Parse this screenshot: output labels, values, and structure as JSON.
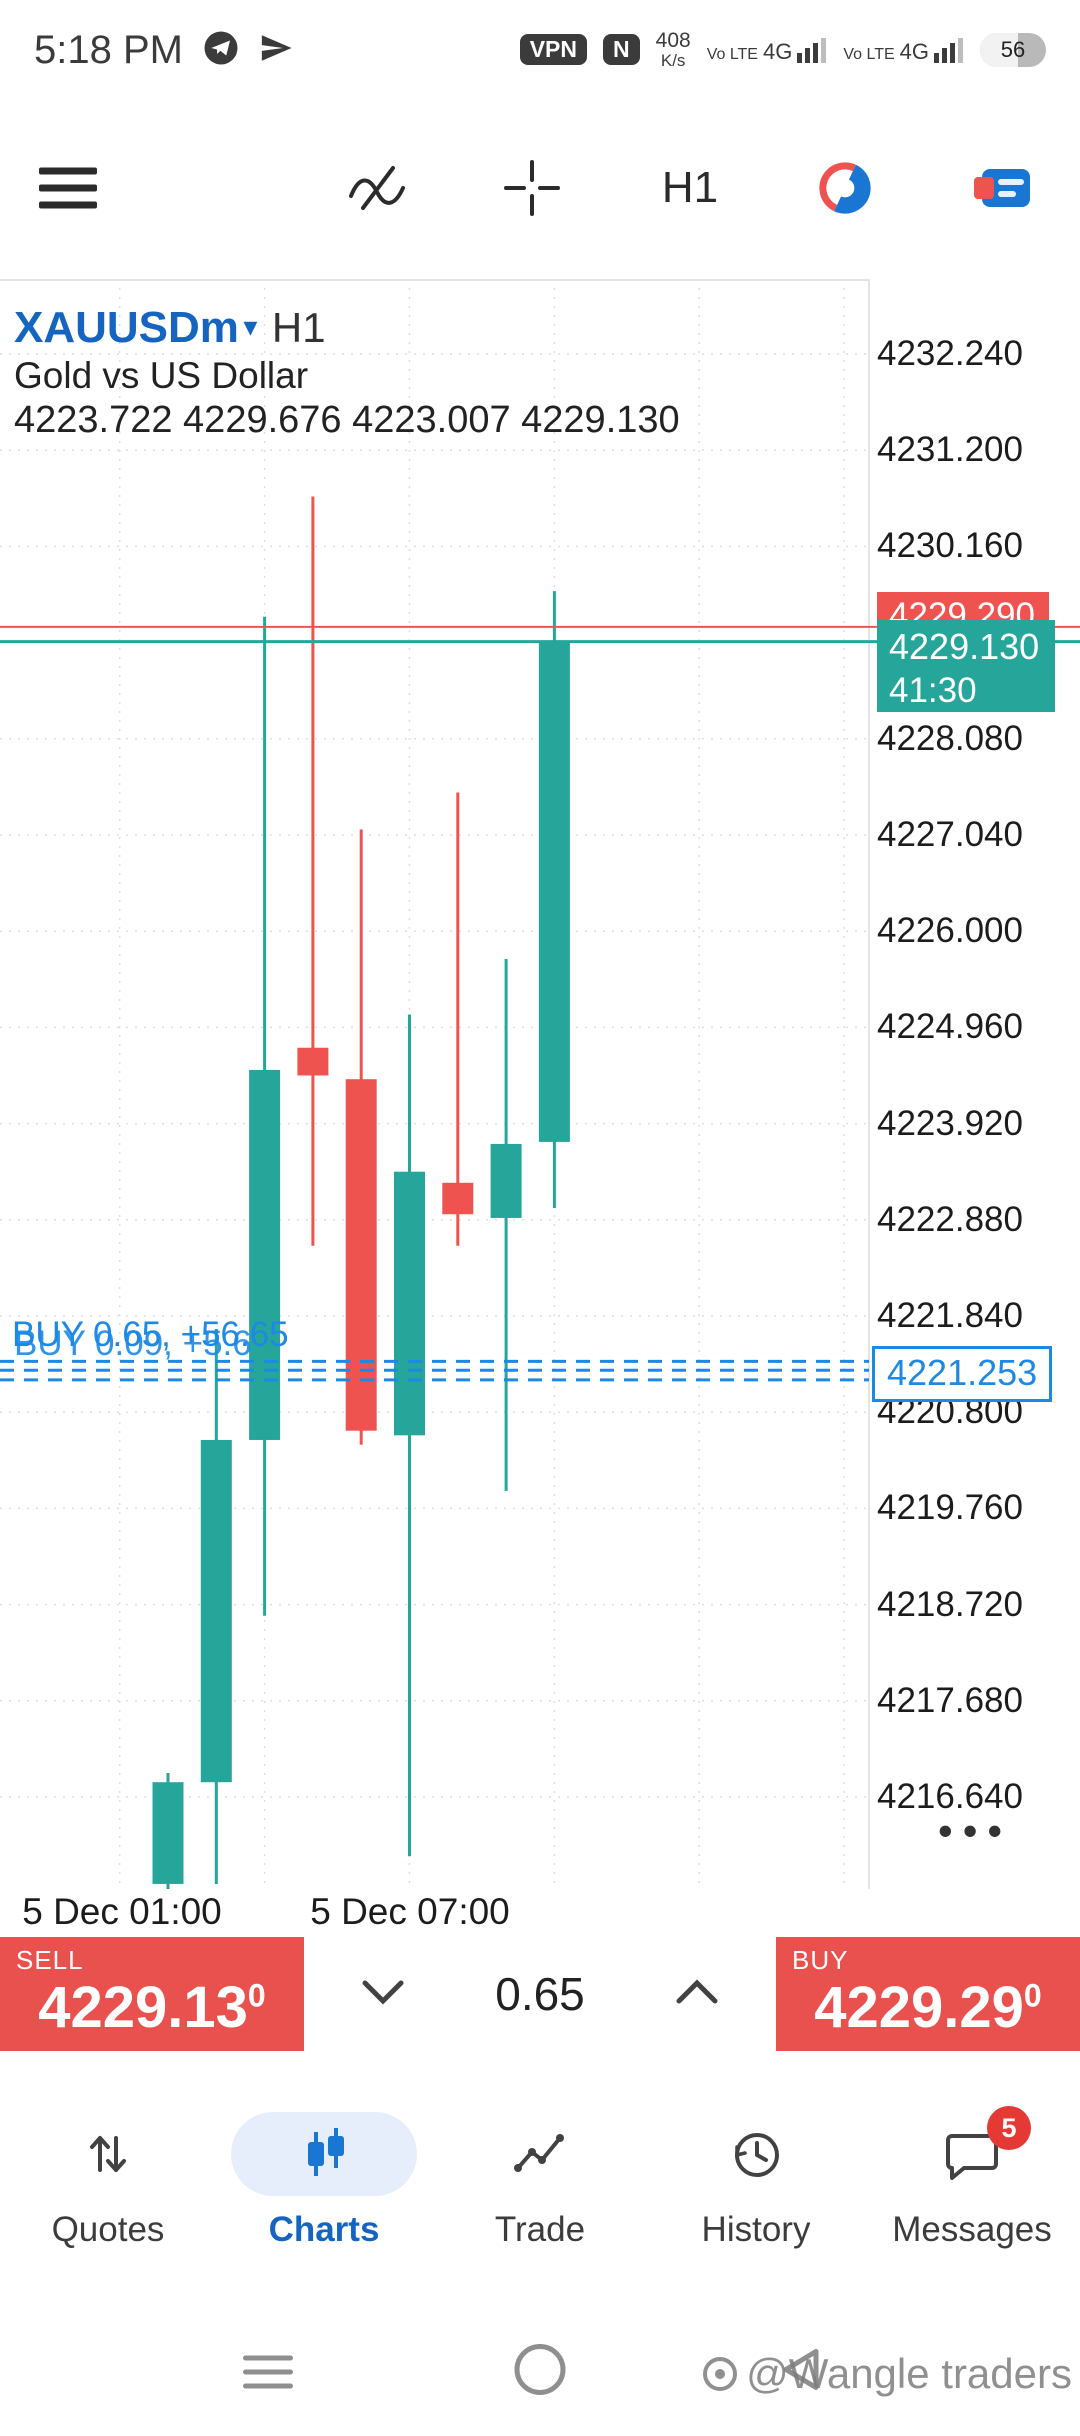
{
  "status_bar": {
    "time": "5:18 PM",
    "vpn_badge": "VPN",
    "nfc_badge": "N",
    "net_speed": "408",
    "net_speed_unit": "K/s",
    "sim1_volte": "Vo LTE",
    "sim1_net": "4G",
    "sim2_volte": "Vo LTE",
    "sim2_net": "4G",
    "battery_percent": "56"
  },
  "toolbar": {
    "timeframe_label": "H1"
  },
  "chart_header": {
    "symbol": "XAUUSDm",
    "dropdown_arrow": "▾",
    "timeframe": "H1",
    "description": "Gold vs US Dollar",
    "ohlc": "4223.722 4229.676 4223.007 4229.130"
  },
  "chart_data": {
    "type": "candlestick",
    "title": "XAUUSDm H1",
    "axis": {
      "top_price": 4232.24,
      "step": 1.04,
      "price_labels": [
        "4232.240",
        "4231.200",
        "4230.160",
        "4228.080",
        "4227.040",
        "4226.000",
        "4224.960",
        "4223.920",
        "4222.880",
        "4221.840",
        "4220.800",
        "4219.760",
        "4218.720",
        "4217.680",
        "4216.640"
      ],
      "time_labels": [
        "5 Dec 01:00",
        "5 Dec 07:00"
      ]
    },
    "candles": [
      {
        "o": 4215.7,
        "h": 4216.9,
        "l": 4215.3,
        "c": 4216.8
      },
      {
        "o": 4216.8,
        "h": 4221.7,
        "l": 4215.7,
        "c": 4220.5
      },
      {
        "o": 4220.5,
        "h": 4229.4,
        "l": 4218.6,
        "c": 4224.5
      },
      {
        "o": 4224.74,
        "h": 4230.7,
        "l": 4222.6,
        "c": 4224.44
      },
      {
        "o": 4224.4,
        "h": 4227.1,
        "l": 4220.45,
        "c": 4220.6
      },
      {
        "o": 4220.55,
        "h": 4225.1,
        "l": 4216.0,
        "c": 4223.4
      },
      {
        "o": 4223.28,
        "h": 4227.5,
        "l": 4222.6,
        "c": 4222.94
      },
      {
        "o": 4222.9,
        "h": 4225.7,
        "l": 4219.95,
        "c": 4223.7
      },
      {
        "o": 4223.722,
        "h": 4229.676,
        "l": 4223.007,
        "c": 4229.13
      }
    ],
    "current_price": 4229.13,
    "ask_price": 4229.29,
    "position_lines": [
      4221.35,
      4221.253,
      4221.15
    ],
    "colors": {
      "bull": "#26a69a",
      "bear": "#ef5350",
      "blue": "#1e88e5"
    }
  },
  "chart_overlays": {
    "bid_badge_price": "4229.130",
    "bid_badge_countdown": "41:30",
    "ask_badge_price": "4229.290",
    "position_box_price": "4221.253",
    "position_label_1": "BUY 0.65, +56.65",
    "position_label_2": "BUY 0.09, +5.6",
    "ellipsis": "•••"
  },
  "trade_panel": {
    "sell_label": "SELL",
    "sell_price": "4229.13",
    "sell_price_sup": "0",
    "volume": "0.65",
    "buy_label": "BUY",
    "buy_price": "4229.29",
    "buy_price_sup": "0"
  },
  "bottom_nav": {
    "items": [
      {
        "label": "Quotes"
      },
      {
        "label": "Charts"
      },
      {
        "label": "Trade"
      },
      {
        "label": "History"
      },
      {
        "label": "Messages",
        "badge": "5"
      }
    ]
  },
  "nav_bar": {
    "watermark": "@Wangle traders"
  }
}
